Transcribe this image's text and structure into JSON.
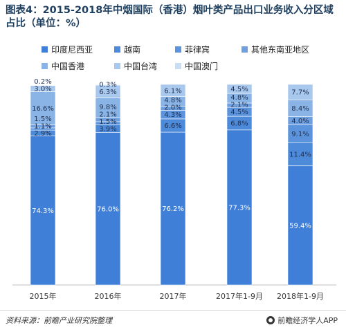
{
  "title": "图表4：2015-2018年中烟国际（香港）烟叶类产品出口业务收入分区域占比（单位：%）",
  "legend": [
    {
      "label": "印度尼西亚",
      "color": "#3f7fd8"
    },
    {
      "label": "越南",
      "color": "#4d8ad9"
    },
    {
      "label": "菲律宾",
      "color": "#5b94dc"
    },
    {
      "label": "其他东南亚地区",
      "color": "#6e9fdf"
    },
    {
      "label": "中国香港",
      "color": "#8ab4e6"
    },
    {
      "label": "中国台湾",
      "color": "#a9c8ee"
    },
    {
      "label": "中国澳门",
      "color": "#c9ddf5"
    }
  ],
  "chart_data": {
    "type": "bar",
    "stacked": true,
    "title": "图表4：2015-2018年中烟国际（香港）烟叶类产品出口业务收入分区域占比（单位：%）",
    "categories": [
      "2015年",
      "2016年",
      "2017年",
      "2017年1-9月",
      "2018年1-9月"
    ],
    "series": [
      {
        "name": "印度尼西亚",
        "values": [
          74.3,
          76.0,
          76.2,
          77.3,
          59.4
        ]
      },
      {
        "name": "越南",
        "values": [
          2.9,
          3.9,
          6.6,
          6.8,
          11.4
        ]
      },
      {
        "name": "菲律宾",
        "values": [
          1.1,
          1.5,
          4.3,
          4.5,
          9.1
        ]
      },
      {
        "name": "其他东南亚地区",
        "values": [
          1.5,
          2.1,
          2.0,
          2.1,
          4.0
        ]
      },
      {
        "name": "中国香港",
        "values": [
          16.6,
          9.8,
          4.8,
          4.8,
          8.4
        ]
      },
      {
        "name": "中国台湾",
        "values": [
          3.0,
          6.3,
          6.1,
          4.5,
          7.7
        ]
      },
      {
        "name": "中国澳门",
        "values": [
          0.2,
          0.3,
          0.0,
          0.0,
          0.0
        ]
      }
    ],
    "data_labels": [
      {
        "category": "2015年",
        "series": "印度尼西亚",
        "text": "74.3%"
      },
      {
        "category": "2015年",
        "series": "越南",
        "text": "2.9%"
      },
      {
        "category": "2015年",
        "series": "菲律宾",
        "text": "1.1%"
      },
      {
        "category": "2015年",
        "series": "其他东南亚地区",
        "text": "1.5%"
      },
      {
        "category": "2015年",
        "series": "中国香港",
        "text": "16.6%"
      },
      {
        "category": "2015年",
        "series": "中国台湾",
        "text": "3.0%"
      },
      {
        "category": "2015年",
        "series": "中国澳门",
        "text": "0.2%"
      },
      {
        "category": "2016年",
        "series": "印度尼西亚",
        "text": "76.0%"
      },
      {
        "category": "2016年",
        "series": "越南",
        "text": "3.9%"
      },
      {
        "category": "2016年",
        "series": "菲律宾",
        "text": "1.5%"
      },
      {
        "category": "2016年",
        "series": "其他东南亚地区",
        "text": "2.1%"
      },
      {
        "category": "2016年",
        "series": "中国香港",
        "text": "9.8%"
      },
      {
        "category": "2016年",
        "series": "中国台湾",
        "text": "6.3%"
      },
      {
        "category": "2016年",
        "series": "中国澳门",
        "text": "0.3%"
      },
      {
        "category": "2017年",
        "series": "印度尼西亚",
        "text": "76.2%"
      },
      {
        "category": "2017年",
        "series": "越南",
        "text": "6.6%"
      },
      {
        "category": "2017年",
        "series": "菲律宾",
        "text": "4.3%"
      },
      {
        "category": "2017年",
        "series": "其他东南亚地区",
        "text": "2.0%"
      },
      {
        "category": "2017年",
        "series": "中国香港",
        "text": "4.8%"
      },
      {
        "category": "2017年",
        "series": "中国台湾",
        "text": "6.1%"
      },
      {
        "category": "2017年1-9月",
        "series": "印度尼西亚",
        "text": "77.3%"
      },
      {
        "category": "2017年1-9月",
        "series": "越南",
        "text": "6.8%"
      },
      {
        "category": "2017年1-9月",
        "series": "菲律宾",
        "text": "4.5%"
      },
      {
        "category": "2017年1-9月",
        "series": "其他东南亚地区",
        "text": "2.1%"
      },
      {
        "category": "2017年1-9月",
        "series": "中国香港",
        "text": "4.8%"
      },
      {
        "category": "2017年1-9月",
        "series": "中国台湾",
        "text": "4.5%"
      },
      {
        "category": "2018年1-9月",
        "series": "印度尼西亚",
        "text": "59.4%"
      },
      {
        "category": "2018年1-9月",
        "series": "越南",
        "text": "11.4%"
      },
      {
        "category": "2018年1-9月",
        "series": "菲律宾",
        "text": "9.1%"
      },
      {
        "category": "2018年1-9月",
        "series": "其他东南亚地区",
        "text": "4.0%"
      },
      {
        "category": "2018年1-9月",
        "series": "中国香港",
        "text": "8.4%"
      },
      {
        "category": "2018年1-9月",
        "series": "中国台湾",
        "text": "7.7%"
      }
    ],
    "ylim": [
      0,
      100
    ],
    "grid": false,
    "legend_position": "top"
  },
  "footer": {
    "source": "资料来源：前瞻产业研究院整理",
    "brand": "前瞻经济学人APP",
    "brand_icon": "wechat-icon"
  }
}
